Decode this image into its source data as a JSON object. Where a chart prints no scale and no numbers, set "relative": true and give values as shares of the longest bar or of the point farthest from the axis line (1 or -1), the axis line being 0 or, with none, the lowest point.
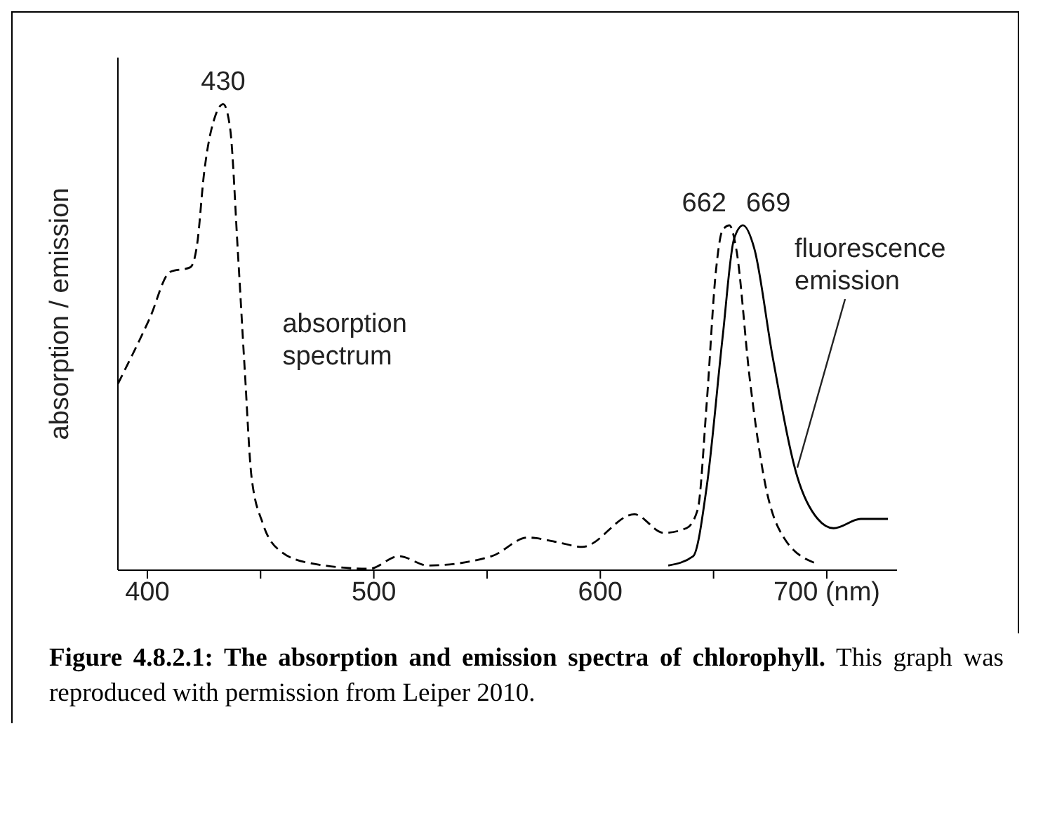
{
  "chart_data": {
    "type": "line",
    "relative": true,
    "ylabel": "absorption / emission",
    "xlim": [
      387,
      731
    ],
    "xticks": [
      400,
      {
        "value": 450,
        "label": null
      },
      500,
      {
        "value": 550,
        "label": null
      },
      600,
      {
        "value": 650,
        "label": null
      },
      {
        "value": 700,
        "label": "700 (nm)"
      }
    ],
    "tick_labels": "x",
    "grid": false,
    "legend": false,
    "marker": "none",
    "series": [
      {
        "color": "#000000",
        "line_style": "dashed",
        "x": [
          387,
          401,
          410,
          419,
          422,
          425,
          430,
          433.5,
          436.5,
          440,
          443,
          446,
          451,
          459,
          472,
          498,
          511,
          524,
          552,
          568,
          581,
          592,
          615,
          628,
          638,
          643,
          647,
          651,
          654,
          657,
          660,
          666,
          673,
          681,
          695
        ],
        "values": [
          0.4,
          0.54,
          0.64,
          0.65,
          0.7,
          0.85,
          0.975,
          1.0,
          0.95,
          0.68,
          0.43,
          0.2,
          0.1,
          0.04,
          0.015,
          0.003,
          0.03,
          0.01,
          0.03,
          0.07,
          0.06,
          0.05,
          0.12,
          0.08,
          0.09,
          0.13,
          0.36,
          0.64,
          0.73,
          0.74,
          0.69,
          0.41,
          0.18,
          0.07,
          0.015
        ]
      },
      {
        "color": "#000000",
        "line_style": "solid",
        "x": [
          630,
          641,
          647,
          654,
          659,
          663,
          668,
          676,
          687,
          696,
          703,
          715,
          727
        ],
        "values": [
          0.01,
          0.03,
          0.18,
          0.5,
          0.71,
          0.74,
          0.69,
          0.46,
          0.2,
          0.11,
          0.09,
          0.11,
          0.11
        ]
      }
    ],
    "annotations": [
      {
        "text": "430",
        "x": 433.5,
        "y": 1.0
      },
      {
        "text": "662",
        "x": 657,
        "y": 0.74
      },
      {
        "text": "669",
        "x": 663,
        "y": 0.74
      },
      {
        "text": "absorption spectrum",
        "x": 446,
        "y": 0.3
      },
      {
        "text": "fluorescence emission",
        "x": 687,
        "y": 0.22
      },
      "Figure 4.8.2.1: The absorption and emission spectra of chlorophyll. This graph was reproduced with permission from Leiper 2010."
    ]
  }
}
